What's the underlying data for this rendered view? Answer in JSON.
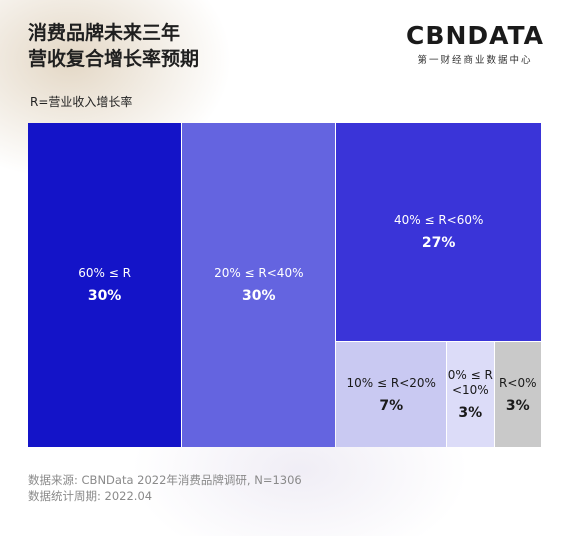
{
  "title": {
    "line1": "消费品牌未来三年",
    "line2": "营收复合增长率预期"
  },
  "logo": {
    "main": "CBNDATA",
    "sub": "第一财经商业数据中心"
  },
  "legend_note": "R=营业收入增长率",
  "colors": {
    "r60": "#1414c8",
    "r20_40": "#6464e0",
    "r40_60": "#3a34d8",
    "r10_20": "#c9c9f2",
    "r0_10": "#dcdcf8",
    "rneg": "#c9c9c9"
  },
  "chart_data": {
    "type": "treemap",
    "items": [
      {
        "label": "60% ≤ R",
        "value": 30,
        "value_label": "30%"
      },
      {
        "label": "20% ≤ R<40%",
        "value": 30,
        "value_label": "30%"
      },
      {
        "label": "40% ≤ R<60%",
        "value": 27,
        "value_label": "27%"
      },
      {
        "label": "10% ≤ R<20%",
        "value": 7,
        "value_label": "7%"
      },
      {
        "label": "0% ≤ R\n<10%",
        "value": 3,
        "value_label": "3%"
      },
      {
        "label": "R<0%",
        "value": 3,
        "value_label": "3%"
      }
    ]
  },
  "footer": {
    "source": "数据来源: CBNData 2022年消费品牌调研, N=1306",
    "period": "数据统计周期: 2022.04"
  }
}
